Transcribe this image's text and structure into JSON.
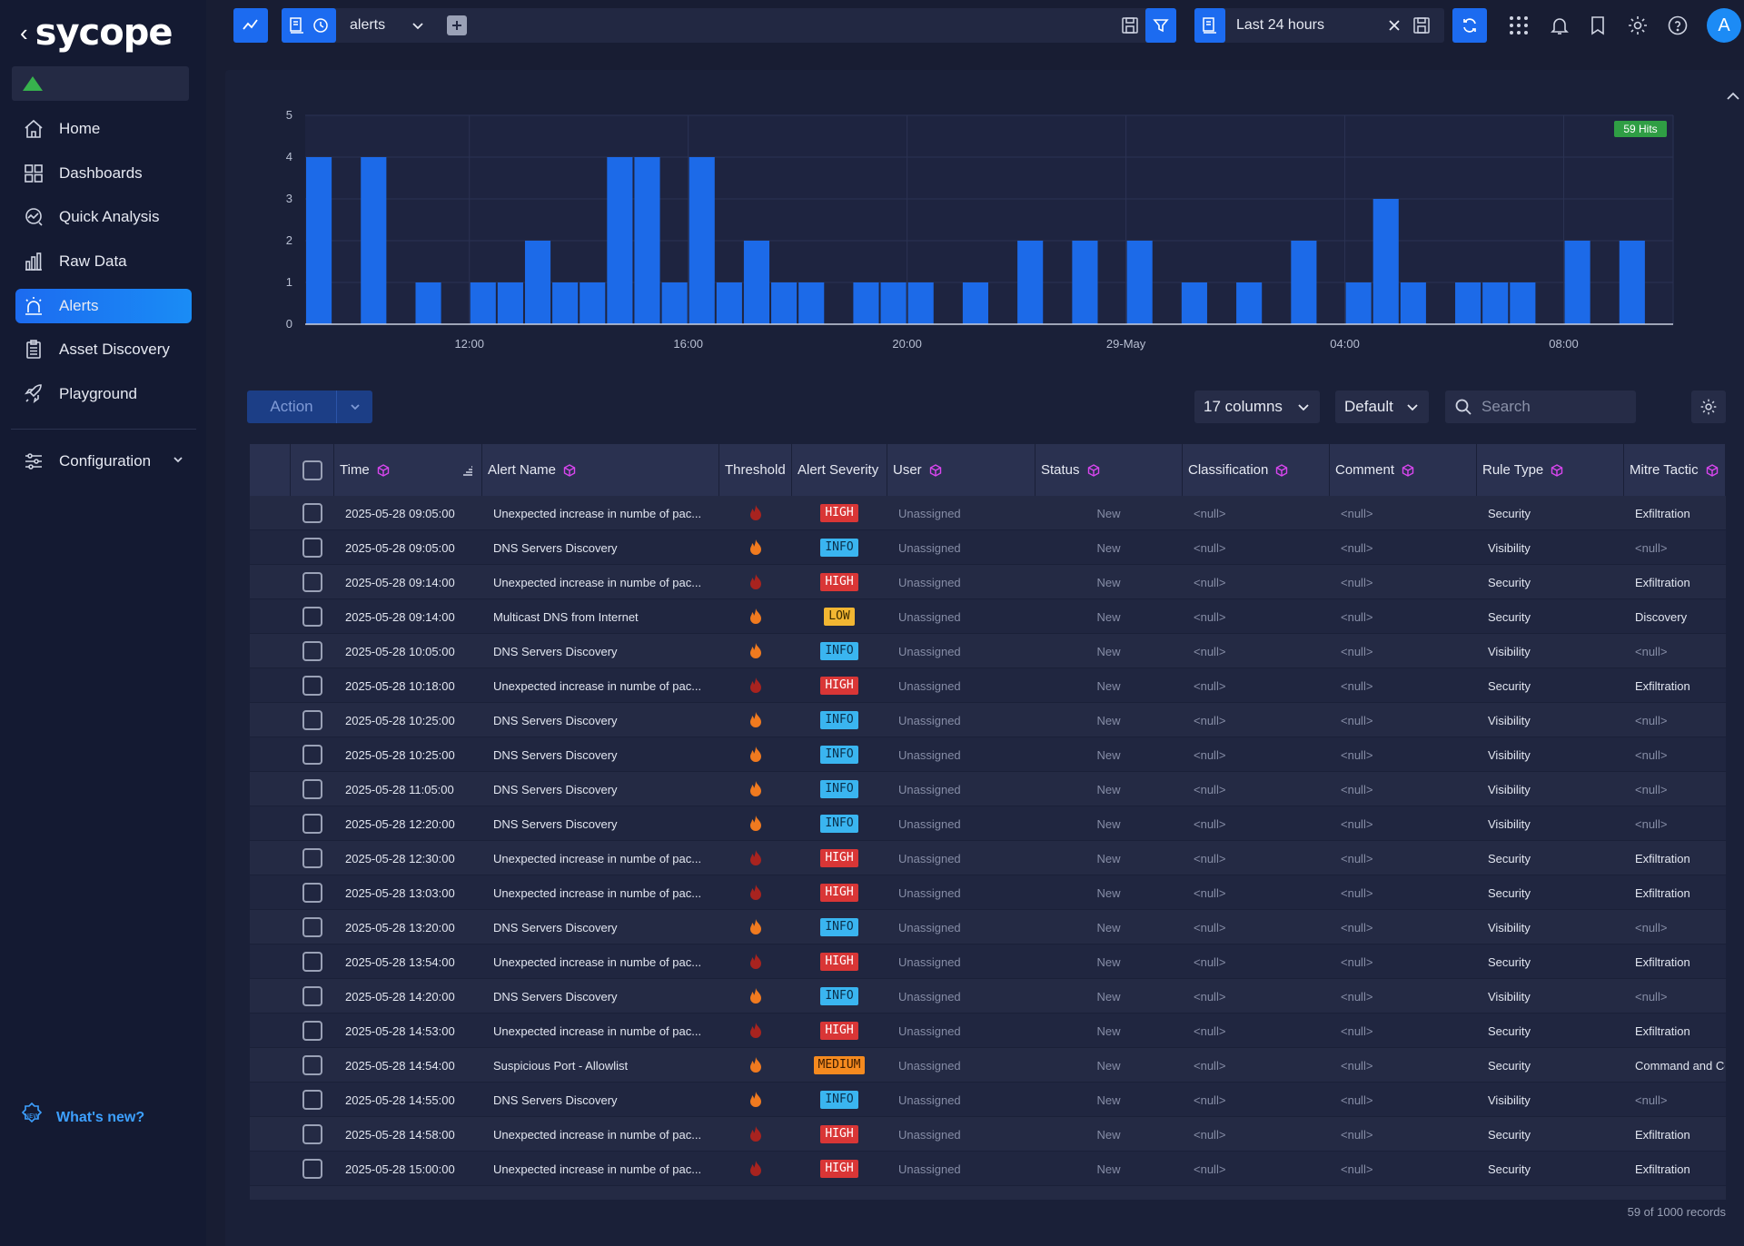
{
  "app": {
    "logo": "sycope",
    "tenant": ""
  },
  "sidebar": {
    "items": [
      {
        "label": "Home",
        "icon": "home-icon",
        "active": false
      },
      {
        "label": "Dashboards",
        "icon": "dashboard-icon",
        "active": false
      },
      {
        "label": "Quick Analysis",
        "icon": "analysis-icon",
        "active": false
      },
      {
        "label": "Raw Data",
        "icon": "bar-chart-icon",
        "active": false
      },
      {
        "label": "Alerts",
        "icon": "alarm-icon",
        "active": true
      },
      {
        "label": "Asset Discovery",
        "icon": "clipboard-icon",
        "active": false
      },
      {
        "label": "Playground",
        "icon": "rocket-icon",
        "active": false
      }
    ],
    "configuration": "Configuration",
    "whats_new": "What's new?"
  },
  "topbar": {
    "query": "alerts",
    "time_range": "Last 24 hours",
    "user_initial": "A"
  },
  "chart_data": {
    "type": "bar",
    "hits_badge": "59 Hits",
    "ylim": [
      0,
      5
    ],
    "yticks": [
      "0",
      "1",
      "2",
      "3",
      "4",
      "5"
    ],
    "xtick_labels": [
      {
        "label": "12:00",
        "at": 6
      },
      {
        "label": "16:00",
        "at": 14
      },
      {
        "label": "20:00",
        "at": 22
      },
      {
        "label": "29-May",
        "at": 30
      },
      {
        "label": "04:00",
        "at": 38
      },
      {
        "label": "08:00",
        "at": 46
      }
    ],
    "values": [
      4,
      0,
      4,
      0,
      1,
      0,
      1,
      1,
      2,
      1,
      1,
      4,
      4,
      1,
      4,
      1,
      2,
      1,
      1,
      0,
      1,
      1,
      1,
      0,
      1,
      0,
      2,
      0,
      2,
      0,
      2,
      0,
      1,
      0,
      1,
      0,
      2,
      0,
      1,
      3,
      1,
      0,
      1,
      1,
      1,
      0,
      2,
      0,
      2,
      0
    ],
    "color": "#1c6ae8"
  },
  "toolbar": {
    "action": "Action",
    "columns": "17 columns",
    "view": "Default",
    "search_placeholder": "Search"
  },
  "table": {
    "columns": [
      "Time",
      "Alert Name",
      "Threshold",
      "Alert Severity",
      "User",
      "Status",
      "Classification",
      "Comment",
      "Rule Type",
      "Mitre Tactic"
    ],
    "rows": [
      {
        "time": "2025-05-28 09:05:00",
        "name": "Unexpected increase in numbe of pac...",
        "flame": "red",
        "severity": "HIGH",
        "user": "Unassigned",
        "status": "New",
        "classification": "<null>",
        "comment": "<null>",
        "rule": "Security",
        "mitre": "Exfiltration"
      },
      {
        "time": "2025-05-28 09:05:00",
        "name": "DNS Servers Discovery",
        "flame": "orange",
        "severity": "INFO",
        "user": "Unassigned",
        "status": "New",
        "classification": "<null>",
        "comment": "<null>",
        "rule": "Visibility",
        "mitre": "<null>"
      },
      {
        "time": "2025-05-28 09:14:00",
        "name": "Unexpected increase in numbe of pac...",
        "flame": "red",
        "severity": "HIGH",
        "user": "Unassigned",
        "status": "New",
        "classification": "<null>",
        "comment": "<null>",
        "rule": "Security",
        "mitre": "Exfiltration"
      },
      {
        "time": "2025-05-28 09:14:00",
        "name": "Multicast DNS from Internet",
        "flame": "orange",
        "severity": "LOW",
        "user": "Unassigned",
        "status": "New",
        "classification": "<null>",
        "comment": "<null>",
        "rule": "Security",
        "mitre": "Discovery"
      },
      {
        "time": "2025-05-28 10:05:00",
        "name": "DNS Servers Discovery",
        "flame": "orange",
        "severity": "INFO",
        "user": "Unassigned",
        "status": "New",
        "classification": "<null>",
        "comment": "<null>",
        "rule": "Visibility",
        "mitre": "<null>"
      },
      {
        "time": "2025-05-28 10:18:00",
        "name": "Unexpected increase in numbe of pac...",
        "flame": "red",
        "severity": "HIGH",
        "user": "Unassigned",
        "status": "New",
        "classification": "<null>",
        "comment": "<null>",
        "rule": "Security",
        "mitre": "Exfiltration"
      },
      {
        "time": "2025-05-28 10:25:00",
        "name": "DNS Servers Discovery",
        "flame": "orange",
        "severity": "INFO",
        "user": "Unassigned",
        "status": "New",
        "classification": "<null>",
        "comment": "<null>",
        "rule": "Visibility",
        "mitre": "<null>"
      },
      {
        "time": "2025-05-28 10:25:00",
        "name": "DNS Servers Discovery",
        "flame": "orange",
        "severity": "INFO",
        "user": "Unassigned",
        "status": "New",
        "classification": "<null>",
        "comment": "<null>",
        "rule": "Visibility",
        "mitre": "<null>"
      },
      {
        "time": "2025-05-28 11:05:00",
        "name": "DNS Servers Discovery",
        "flame": "orange",
        "severity": "INFO",
        "user": "Unassigned",
        "status": "New",
        "classification": "<null>",
        "comment": "<null>",
        "rule": "Visibility",
        "mitre": "<null>"
      },
      {
        "time": "2025-05-28 12:20:00",
        "name": "DNS Servers Discovery",
        "flame": "orange",
        "severity": "INFO",
        "user": "Unassigned",
        "status": "New",
        "classification": "<null>",
        "comment": "<null>",
        "rule": "Visibility",
        "mitre": "<null>"
      },
      {
        "time": "2025-05-28 12:30:00",
        "name": "Unexpected increase in numbe of pac...",
        "flame": "red",
        "severity": "HIGH",
        "user": "Unassigned",
        "status": "New",
        "classification": "<null>",
        "comment": "<null>",
        "rule": "Security",
        "mitre": "Exfiltration"
      },
      {
        "time": "2025-05-28 13:03:00",
        "name": "Unexpected increase in numbe of pac...",
        "flame": "red",
        "severity": "HIGH",
        "user": "Unassigned",
        "status": "New",
        "classification": "<null>",
        "comment": "<null>",
        "rule": "Security",
        "mitre": "Exfiltration"
      },
      {
        "time": "2025-05-28 13:20:00",
        "name": "DNS Servers Discovery",
        "flame": "orange",
        "severity": "INFO",
        "user": "Unassigned",
        "status": "New",
        "classification": "<null>",
        "comment": "<null>",
        "rule": "Visibility",
        "mitre": "<null>"
      },
      {
        "time": "2025-05-28 13:54:00",
        "name": "Unexpected increase in numbe of pac...",
        "flame": "red",
        "severity": "HIGH",
        "user": "Unassigned",
        "status": "New",
        "classification": "<null>",
        "comment": "<null>",
        "rule": "Security",
        "mitre": "Exfiltration"
      },
      {
        "time": "2025-05-28 14:20:00",
        "name": "DNS Servers Discovery",
        "flame": "orange",
        "severity": "INFO",
        "user": "Unassigned",
        "status": "New",
        "classification": "<null>",
        "comment": "<null>",
        "rule": "Visibility",
        "mitre": "<null>"
      },
      {
        "time": "2025-05-28 14:53:00",
        "name": "Unexpected increase in numbe of pac...",
        "flame": "red",
        "severity": "HIGH",
        "user": "Unassigned",
        "status": "New",
        "classification": "<null>",
        "comment": "<null>",
        "rule": "Security",
        "mitre": "Exfiltration"
      },
      {
        "time": "2025-05-28 14:54:00",
        "name": "Suspicious Port - Allowlist",
        "flame": "orange",
        "severity": "MEDIUM",
        "user": "Unassigned",
        "status": "New",
        "classification": "<null>",
        "comment": "<null>",
        "rule": "Security",
        "mitre": "Command and Co"
      },
      {
        "time": "2025-05-28 14:55:00",
        "name": "DNS Servers Discovery",
        "flame": "orange",
        "severity": "INFO",
        "user": "Unassigned",
        "status": "New",
        "classification": "<null>",
        "comment": "<null>",
        "rule": "Visibility",
        "mitre": "<null>"
      },
      {
        "time": "2025-05-28 14:58:00",
        "name": "Unexpected increase in numbe of pac...",
        "flame": "red",
        "severity": "HIGH",
        "user": "Unassigned",
        "status": "New",
        "classification": "<null>",
        "comment": "<null>",
        "rule": "Security",
        "mitre": "Exfiltration"
      },
      {
        "time": "2025-05-28 15:00:00",
        "name": "Unexpected increase in numbe of pac...",
        "flame": "red",
        "severity": "HIGH",
        "user": "Unassigned",
        "status": "New",
        "classification": "<null>",
        "comment": "<null>",
        "rule": "Security",
        "mitre": "Exfiltration"
      }
    ],
    "records": "59 of 1000 records"
  },
  "colors": {
    "accent": "#1c6bf0",
    "sev_high_bg": "#d93636",
    "sev_info_bg": "#3ab5f0",
    "sev_low_bg": "#f2b632",
    "sev_medium_bg": "#f58a1f",
    "flame_red": "#a8231f",
    "flame_orange": "#f07a1f",
    "hits_badge": "#2f9e44"
  }
}
